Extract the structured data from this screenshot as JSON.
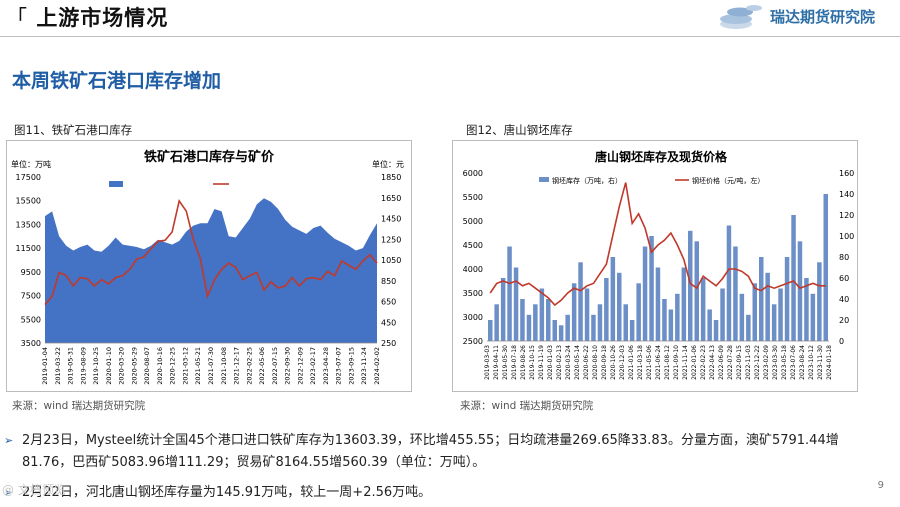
{
  "header": {
    "title": "上游市场情况",
    "bracket": "「",
    "logo_text": "瑞达期货研究院",
    "logo_icon": "coin-stack-icon"
  },
  "subtitle": "本周铁矿石港口库存增加",
  "chart_left": {
    "caption": "图11、铁矿石港口库存",
    "source": "来源：wind   瑞达期货研究院",
    "chart_data": {
      "type": "area+line",
      "title": "铁矿石港口库存与矿价",
      "left_unit": "万吨",
      "right_unit": "元",
      "left_ticks": [
        "17500",
        "15500",
        "13500",
        "11500",
        "9500",
        "7500",
        "5500",
        "3500"
      ],
      "right_ticks": [
        "1850",
        "1650",
        "1450",
        "1250",
        "1050",
        "850",
        "650",
        "450",
        "250"
      ],
      "ylim_left": [
        3500,
        17500
      ],
      "ylim_right": [
        250,
        1850
      ],
      "x_ticks": [
        "2019-01-04",
        "2019-03-22",
        "2019-05-31",
        "2019-08-09",
        "2019-10-25",
        "2020-01-10",
        "2020-03-20",
        "2020-05-29",
        "2020-08-07",
        "2020-10-16",
        "2020-12-25",
        "2021-03-12",
        "2021-05-21",
        "2021-07-30",
        "2021-10-08",
        "2021-12-17",
        "2022-02-25",
        "2022-05-06",
        "2022-07-15",
        "2022-09-30",
        "2022-12-09",
        "2023-02-17",
        "2023-04-28",
        "2023-07-07",
        "2023-09-15",
        "2023-11-24",
        "2024-02-02"
      ],
      "series": [
        {
          "name": "库存量（左）",
          "color": "#4472c4",
          "values": [
            14200,
            14600,
            12500,
            11700,
            11300,
            11600,
            11800,
            11300,
            11200,
            11700,
            12400,
            11800,
            11700,
            11600,
            11400,
            11700,
            12200,
            12000,
            11800,
            12100,
            12900,
            13400,
            13600,
            13600,
            14800,
            14600,
            12500,
            12400,
            13200,
            14000,
            15200,
            15700,
            15400,
            14800,
            13900,
            13300,
            13000,
            12700,
            13200,
            13400,
            12800,
            12300,
            12000,
            11700,
            11300,
            11500,
            12600,
            13600
          ]
        },
        {
          "name": "澳洲麦克粉61%（右）",
          "color": "#c0392b",
          "values": [
            620,
            700,
            930,
            900,
            800,
            880,
            870,
            800,
            860,
            820,
            880,
            900,
            960,
            1060,
            1080,
            1160,
            1230,
            1240,
            1320,
            1620,
            1520,
            1250,
            1060,
            700,
            860,
            960,
            1020,
            980,
            860,
            900,
            930,
            760,
            840,
            780,
            800,
            880,
            800,
            870,
            880,
            860,
            940,
            900,
            1040,
            1000,
            960,
            1040,
            1100,
            1020
          ]
        }
      ]
    }
  },
  "chart_right": {
    "caption": "图12、唐山钢坯库存",
    "source": "来源：wind   瑞达期货研究院",
    "chart_data": {
      "type": "bar+line",
      "title": "唐山钢坯库存及现货价格",
      "ylim_left": [
        2500,
        6000
      ],
      "ylim_right": [
        0,
        160
      ],
      "left_ticks": [
        "6000",
        "5500",
        "5000",
        "4500",
        "4000",
        "3500",
        "3000",
        "2500"
      ],
      "right_ticks": [
        "160",
        "140",
        "120",
        "100",
        "80",
        "60",
        "40",
        "20",
        "0"
      ],
      "x_ticks": [
        "2019-03-03",
        "2019-04-11",
        "2019-05-30",
        "2019-07-18",
        "2019-08-26",
        "2019-10-15",
        "2019-11-19",
        "2020-01-03",
        "2020-02-13",
        "2020-03-24",
        "2020-05-14",
        "2020-06-22",
        "2020-08-10",
        "2020-09-18",
        "2020-10-26",
        "2020-12-03",
        "2021-01-06",
        "2021-03-18",
        "2021-05-06",
        "2021-06-24",
        "2021-08-12",
        "2021-09-10",
        "2021-11-14",
        "2022-01-06",
        "2022-02-23",
        "2022-04-13",
        "2022-06-09",
        "2022-07-28",
        "2022-09-15",
        "2022-11-03",
        "2022-12-22",
        "2023-02-09",
        "2023-03-30",
        "2023-05-18",
        "2023-07-06",
        "2023-08-24",
        "2023-10-12",
        "2023-11-30",
        "2024-01-18"
      ],
      "series": [
        {
          "name": "钢坯库存（万吨，右）",
          "color": "#6d8fc7",
          "values": [
            20,
            35,
            60,
            90,
            70,
            40,
            25,
            35,
            50,
            40,
            20,
            15,
            25,
            55,
            75,
            50,
            25,
            35,
            60,
            80,
            65,
            35,
            20,
            55,
            90,
            100,
            70,
            40,
            30,
            45,
            70,
            105,
            95,
            60,
            30,
            20,
            50,
            110,
            90,
            45,
            25,
            55,
            80,
            65,
            35,
            50,
            80,
            120,
            95,
            60,
            45,
            75,
            140
          ]
        },
        {
          "name": "钢坯价格（元/吨，左）",
          "color": "#c0392b",
          "values": [
            3500,
            3700,
            3750,
            3700,
            3750,
            3650,
            3700,
            3600,
            3500,
            3400,
            3250,
            3350,
            3500,
            3600,
            3550,
            3650,
            3700,
            3900,
            4100,
            4700,
            5300,
            5800,
            4950,
            5150,
            4850,
            4350,
            4500,
            4600,
            4750,
            4500,
            4200,
            3700,
            3600,
            3850,
            3750,
            3650,
            3800,
            4000,
            4000,
            3950,
            3850,
            3600,
            3550,
            3650,
            3600,
            3650,
            3700,
            3750,
            3600,
            3650,
            3700,
            3650,
            3650
          ]
        }
      ]
    }
  },
  "bullets": [
    {
      "text": "2月23日，Mysteel统计全国45个港口进口铁矿库存为13603.39，环比增455.55；日均疏港量269.65降33.83。分量方面，澳矿5791.44增",
      "text2": "81.76，巴西矿5083.96增111.29；贸易矿8164.55增560.39（单位：万吨）。"
    },
    {
      "text": "2月22日，河北唐山钢坯库存量为145.91万吨，较上一周+2.56万吨。"
    }
  ],
  "watermark": "@ 文档预览",
  "page_number": "9",
  "colors": {
    "accent": "#1f5da4",
    "bar": "#4472c4",
    "line": "#c0392b"
  }
}
